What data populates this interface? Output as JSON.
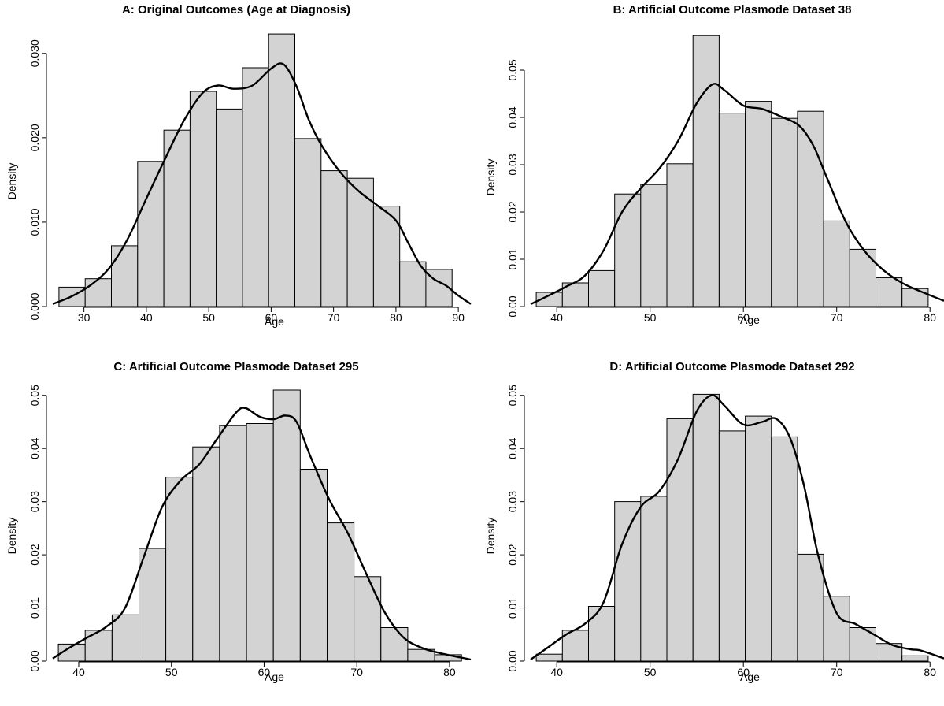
{
  "chart_data": [
    {
      "type": "bar",
      "title": "A: Original Outcomes (Age at Diagnosis)",
      "xlabel": "Age",
      "ylabel": "Density",
      "xlim": [
        25,
        92
      ],
      "ylim": [
        0,
        0.0325
      ],
      "xticks": [
        30,
        40,
        50,
        60,
        70,
        80,
        90
      ],
      "yticks": [
        0.0,
        0.01,
        0.02,
        0.03
      ],
      "ytick_labels": [
        "0.000",
        "0.010",
        "0.020",
        "0.030"
      ],
      "bins": [
        {
          "x0": 26.0,
          "x1": 30.2,
          "y": 0.0023
        },
        {
          "x0": 30.2,
          "x1": 34.4,
          "y": 0.0033
        },
        {
          "x0": 34.4,
          "x1": 38.6,
          "y": 0.0072
        },
        {
          "x0": 38.6,
          "x1": 42.8,
          "y": 0.0172
        },
        {
          "x0": 42.8,
          "x1": 47.0,
          "y": 0.0209
        },
        {
          "x0": 47.0,
          "x1": 51.2,
          "y": 0.0255
        },
        {
          "x0": 51.2,
          "x1": 55.4,
          "y": 0.0234
        },
        {
          "x0": 55.4,
          "x1": 59.6,
          "y": 0.0283
        },
        {
          "x0": 59.6,
          "x1": 63.8,
          "y": 0.0323
        },
        {
          "x0": 63.8,
          "x1": 68.0,
          "y": 0.0199
        },
        {
          "x0": 68.0,
          "x1": 72.2,
          "y": 0.0161
        },
        {
          "x0": 72.2,
          "x1": 76.4,
          "y": 0.0152
        },
        {
          "x0": 76.4,
          "x1": 80.6,
          "y": 0.0119
        },
        {
          "x0": 80.6,
          "x1": 84.8,
          "y": 0.0053
        },
        {
          "x0": 84.8,
          "x1": 89.0,
          "y": 0.0044
        }
      ],
      "density": {
        "x": [
          25,
          28,
          31,
          34,
          37,
          40,
          43,
          46,
          49,
          51.5,
          54,
          57,
          60,
          62,
          64,
          66,
          68,
          71,
          74,
          77,
          80,
          82,
          84,
          86,
          88,
          90,
          92
        ],
        "y": [
          0.0003,
          0.0012,
          0.0025,
          0.0045,
          0.008,
          0.0128,
          0.0175,
          0.022,
          0.0253,
          0.0262,
          0.0258,
          0.0262,
          0.0282,
          0.0287,
          0.0262,
          0.0222,
          0.0192,
          0.016,
          0.0137,
          0.012,
          0.0102,
          0.0075,
          0.0048,
          0.0033,
          0.0025,
          0.0013,
          0.0003
        ]
      }
    },
    {
      "type": "bar",
      "title": "B: Artificial Outcome Plasmode Dataset 38",
      "xlabel": "Age",
      "ylabel": "Density",
      "xlim": [
        37.2,
        81.5
      ],
      "ylim": [
        0,
        0.058
      ],
      "xticks": [
        40,
        50,
        60,
        70,
        80
      ],
      "yticks": [
        0.0,
        0.01,
        0.02,
        0.03,
        0.04,
        0.05
      ],
      "ytick_labels": [
        "0.00",
        "0.01",
        "0.02",
        "0.03",
        "0.04",
        "0.05"
      ],
      "bins": [
        {
          "x0": 37.8,
          "x1": 40.6,
          "y": 0.003
        },
        {
          "x0": 40.6,
          "x1": 43.4,
          "y": 0.005
        },
        {
          "x0": 43.4,
          "x1": 46.2,
          "y": 0.0076
        },
        {
          "x0": 46.2,
          "x1": 49.0,
          "y": 0.0238
        },
        {
          "x0": 49.0,
          "x1": 51.8,
          "y": 0.0258
        },
        {
          "x0": 51.8,
          "x1": 54.6,
          "y": 0.0302
        },
        {
          "x0": 54.6,
          "x1": 57.4,
          "y": 0.0573
        },
        {
          "x0": 57.4,
          "x1": 60.2,
          "y": 0.0409
        },
        {
          "x0": 60.2,
          "x1": 63.0,
          "y": 0.0434
        },
        {
          "x0": 63.0,
          "x1": 65.8,
          "y": 0.0398
        },
        {
          "x0": 65.8,
          "x1": 68.6,
          "y": 0.0413
        },
        {
          "x0": 68.6,
          "x1": 71.4,
          "y": 0.0181
        },
        {
          "x0": 71.4,
          "x1": 74.2,
          "y": 0.0121
        },
        {
          "x0": 74.2,
          "x1": 77.0,
          "y": 0.0061
        },
        {
          "x0": 77.0,
          "x1": 79.8,
          "y": 0.0038
        }
      ],
      "density": {
        "x": [
          37.2,
          39,
          41,
          43,
          45,
          47,
          49,
          51,
          53,
          55,
          56.7,
          58,
          60,
          62,
          64,
          66,
          67.5,
          69,
          71,
          73,
          75,
          77,
          79,
          81.5
        ],
        "y": [
          0.0005,
          0.0022,
          0.0042,
          0.0065,
          0.0118,
          0.02,
          0.025,
          0.0292,
          0.035,
          0.043,
          0.047,
          0.0457,
          0.0425,
          0.0418,
          0.0402,
          0.0382,
          0.034,
          0.027,
          0.0178,
          0.0117,
          0.0077,
          0.005,
          0.0032,
          0.0012
        ]
      }
    },
    {
      "type": "bar",
      "title": "C: Artificial Outcome Plasmode Dataset 295",
      "xlabel": "Age",
      "ylabel": "Density",
      "xlim": [
        37.2,
        82.3
      ],
      "ylim": [
        0,
        0.051
      ],
      "xticks": [
        40,
        50,
        60,
        70,
        80
      ],
      "yticks": [
        0.0,
        0.01,
        0.02,
        0.03,
        0.04,
        0.05
      ],
      "ytick_labels": [
        "0.00",
        "0.01",
        "0.02",
        "0.03",
        "0.04",
        "0.05"
      ],
      "bins": [
        {
          "x0": 37.8,
          "x1": 40.7,
          "y": 0.0032
        },
        {
          "x0": 40.7,
          "x1": 43.6,
          "y": 0.0058
        },
        {
          "x0": 43.6,
          "x1": 46.5,
          "y": 0.0087
        },
        {
          "x0": 46.5,
          "x1": 49.4,
          "y": 0.0212
        },
        {
          "x0": 49.4,
          "x1": 52.3,
          "y": 0.0346
        },
        {
          "x0": 52.3,
          "x1": 55.2,
          "y": 0.0403
        },
        {
          "x0": 55.2,
          "x1": 58.1,
          "y": 0.0443
        },
        {
          "x0": 58.1,
          "x1": 61.0,
          "y": 0.0447
        },
        {
          "x0": 61.0,
          "x1": 63.9,
          "y": 0.051
        },
        {
          "x0": 63.9,
          "x1": 66.8,
          "y": 0.0361
        },
        {
          "x0": 66.8,
          "x1": 69.7,
          "y": 0.026
        },
        {
          "x0": 69.7,
          "x1": 72.6,
          "y": 0.0159
        },
        {
          "x0": 72.6,
          "x1": 75.5,
          "y": 0.0063
        },
        {
          "x0": 75.5,
          "x1": 78.4,
          "y": 0.0022
        },
        {
          "x0": 78.4,
          "x1": 81.3,
          "y": 0.0012
        }
      ],
      "density": {
        "x": [
          37.2,
          39,
          41,
          43,
          45,
          47,
          49,
          51,
          53,
          55,
          57,
          58,
          59.5,
          61,
          62.3,
          63.5,
          65,
          67,
          69,
          71,
          73,
          75,
          77,
          79,
          82.3
        ],
        "y": [
          0.0005,
          0.0025,
          0.0045,
          0.0065,
          0.01,
          0.0195,
          0.029,
          0.034,
          0.037,
          0.042,
          0.0468,
          0.0476,
          0.046,
          0.0455,
          0.0462,
          0.045,
          0.0385,
          0.0305,
          0.0242,
          0.0165,
          0.0092,
          0.0045,
          0.0025,
          0.0015,
          0.0003
        ]
      }
    },
    {
      "type": "bar",
      "title": "D: Artificial Outcome Plasmode Dataset 292",
      "xlabel": "Age",
      "ylabel": "Density",
      "xlim": [
        37.2,
        81.5
      ],
      "ylim": [
        0,
        0.051
      ],
      "xticks": [
        40,
        50,
        60,
        70,
        80
      ],
      "yticks": [
        0.0,
        0.01,
        0.02,
        0.03,
        0.04,
        0.05
      ],
      "ytick_labels": [
        "0.00",
        "0.01",
        "0.02",
        "0.03",
        "0.04",
        "0.05"
      ],
      "bins": [
        {
          "x0": 37.8,
          "x1": 40.6,
          "y": 0.0013
        },
        {
          "x0": 40.6,
          "x1": 43.4,
          "y": 0.0058
        },
        {
          "x0": 43.4,
          "x1": 46.2,
          "y": 0.0103
        },
        {
          "x0": 46.2,
          "x1": 49.0,
          "y": 0.03
        },
        {
          "x0": 49.0,
          "x1": 51.8,
          "y": 0.031
        },
        {
          "x0": 51.8,
          "x1": 54.6,
          "y": 0.0456
        },
        {
          "x0": 54.6,
          "x1": 57.4,
          "y": 0.0502
        },
        {
          "x0": 57.4,
          "x1": 60.2,
          "y": 0.0433
        },
        {
          "x0": 60.2,
          "x1": 63.0,
          "y": 0.0461
        },
        {
          "x0": 63.0,
          "x1": 65.8,
          "y": 0.0422
        },
        {
          "x0": 65.8,
          "x1": 68.6,
          "y": 0.0201
        },
        {
          "x0": 68.6,
          "x1": 71.4,
          "y": 0.0122
        },
        {
          "x0": 71.4,
          "x1": 74.2,
          "y": 0.0063
        },
        {
          "x0": 74.2,
          "x1": 77.0,
          "y": 0.0033
        },
        {
          "x0": 77.0,
          "x1": 79.8,
          "y": 0.001
        }
      ],
      "density": {
        "x": [
          37.2,
          39,
          41,
          43,
          45,
          47,
          49,
          51,
          53,
          55,
          56.6,
          58,
          60,
          62,
          63.5,
          65,
          66.5,
          68,
          70,
          72,
          74,
          76,
          78,
          79,
          81.5
        ],
        "y": [
          0.0003,
          0.0025,
          0.005,
          0.007,
          0.011,
          0.022,
          0.029,
          0.032,
          0.038,
          0.047,
          0.05,
          0.048,
          0.0445,
          0.045,
          0.0456,
          0.042,
          0.033,
          0.02,
          0.009,
          0.007,
          0.005,
          0.003,
          0.0022,
          0.002,
          0.0005
        ]
      }
    }
  ]
}
